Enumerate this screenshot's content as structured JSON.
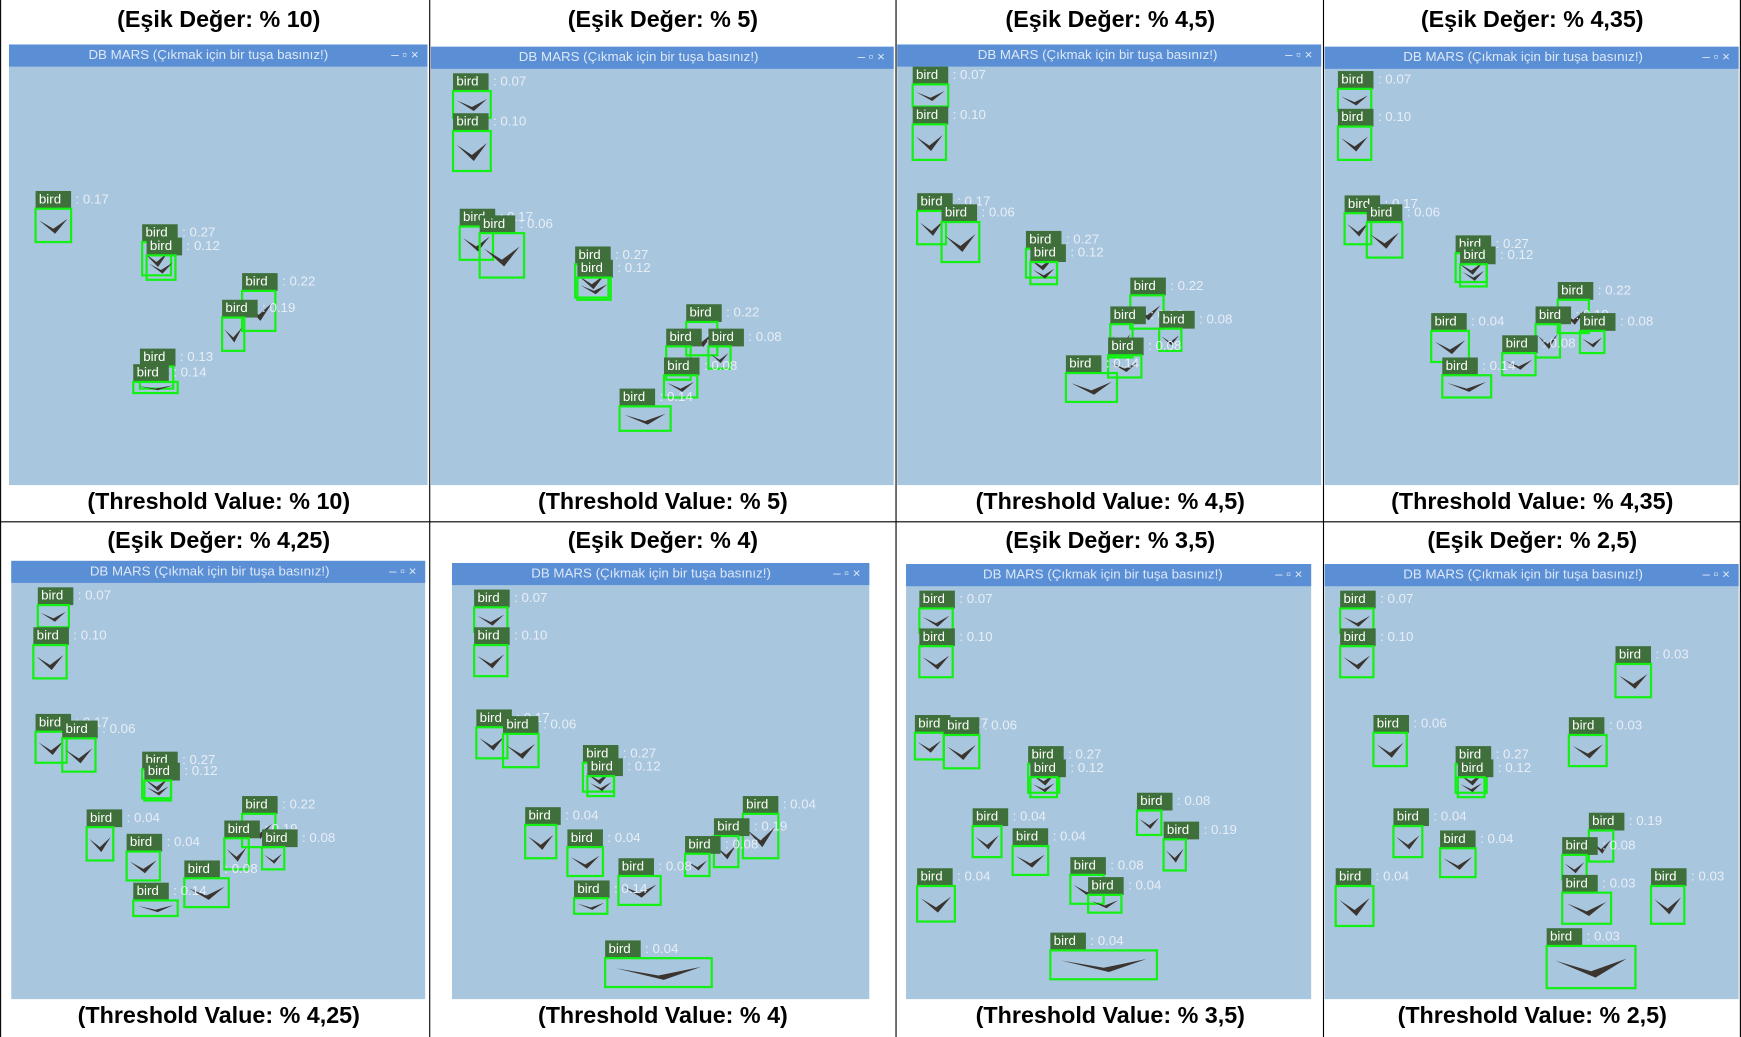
{
  "window_controls": "–  ▫  ×",
  "panels": [
    {
      "title": "(Eşik Değer: % 10)",
      "caption": "(Threshold Value: % 10)",
      "window_title": "DB MARS (Çıkmak için bir tuşa basınız!)",
      "detections": [
        {
          "label": "bird",
          "score": ": 0.17"
        },
        {
          "label": "bird",
          "score": ": 0.27"
        },
        {
          "label": "bird",
          "score": ": 0.12"
        },
        {
          "label": "bird",
          "score": ": 0.22"
        },
        {
          "label": "bird",
          "score": ": 0.19"
        },
        {
          "label": "bird",
          "score": ": 0.13"
        },
        {
          "label": "bird",
          "score": ": 0.14"
        }
      ]
    },
    {
      "title": "(Eşik Değer: % 5)",
      "caption": "(Threshold Value: % 5)",
      "window_title": "DB MARS (Çıkmak için bir tuşa basınız!)",
      "detections": [
        {
          "label": "bird",
          "score": ": 0.07"
        },
        {
          "label": "bird",
          "score": ": 0.10"
        },
        {
          "label": "bird",
          "score": ": 0.17"
        },
        {
          "label": "bird",
          "score": ": 0.06"
        },
        {
          "label": "bird",
          "score": ": 0.27"
        },
        {
          "label": "bird",
          "score": ": 0.12"
        },
        {
          "label": "bird",
          "score": ": 0.22"
        },
        {
          "label": "bird",
          "score": ": 0.19"
        },
        {
          "label": "bird",
          "score": ": 0.08"
        },
        {
          "label": "bird",
          "score": ": 0.08"
        },
        {
          "label": "bird",
          "score": ": 0.14"
        }
      ]
    },
    {
      "title": "(Eşik Değer: % 4,5)",
      "caption": "(Threshold Value: % 4,5)",
      "window_title": "DB MARS (Çıkmak için bir tuşa basınız!)",
      "detections": [
        {
          "label": "bird",
          "score": ": 0.07"
        },
        {
          "label": "bird",
          "score": ": 0.10"
        },
        {
          "label": "bird",
          "score": ": 0.17"
        },
        {
          "label": "bird",
          "score": ": 0.06"
        },
        {
          "label": "bird",
          "score": ": 0.27"
        },
        {
          "label": "bird",
          "score": ": 0.12"
        },
        {
          "label": "bird",
          "score": ": 0.22"
        },
        {
          "label": "bird",
          "score": ": 0.19"
        },
        {
          "label": "bird",
          "score": ": 0.08"
        },
        {
          "label": "bird",
          "score": ": 0.08"
        },
        {
          "label": "bird",
          "score": ": 0.14"
        }
      ]
    },
    {
      "title": "(Eşik Değer: % 4,35)",
      "caption": "(Threshold Value: % 4,35)",
      "window_title": "DB MARS (Çıkmak için bir tuşa basınız!)",
      "detections": [
        {
          "label": "bird",
          "score": ": 0.07"
        },
        {
          "label": "bird",
          "score": ": 0.10"
        },
        {
          "label": "bird",
          "score": ": 0.17"
        },
        {
          "label": "bird",
          "score": ": 0.06"
        },
        {
          "label": "bird",
          "score": ": 0.27"
        },
        {
          "label": "bird",
          "score": ": 0.12"
        },
        {
          "label": "bird",
          "score": ": 0.22"
        },
        {
          "label": "bird",
          "score": ": 0.19"
        },
        {
          "label": "bird",
          "score": ": 0.04"
        },
        {
          "label": "bird",
          "score": ": 0.08"
        },
        {
          "label": "bird",
          "score": ": 0.08"
        },
        {
          "label": "bird",
          "score": ": 0.14"
        }
      ]
    },
    {
      "title": "(Eşik Değer: % 4,25)",
      "caption": "(Threshold Value: % 4,25)",
      "window_title": "DB MARS (Çıkmak için bir tuşa basınız!)",
      "detections": [
        {
          "label": "bird",
          "score": ": 0.07"
        },
        {
          "label": "bird",
          "score": ": 0.10"
        },
        {
          "label": "bird",
          "score": ": 0.17"
        },
        {
          "label": "bird",
          "score": ": 0.06"
        },
        {
          "label": "bird",
          "score": ": 0.27"
        },
        {
          "label": "bird",
          "score": ": 0.12"
        },
        {
          "label": "bird",
          "score": ": 0.04"
        },
        {
          "label": "bird",
          "score": ": 0.04"
        },
        {
          "label": "bird",
          "score": ": 0.22"
        },
        {
          "label": "bird",
          "score": ": 0.19"
        },
        {
          "label": "bird",
          "score": ": 0.08"
        },
        {
          "label": "bird",
          "score": ": 0.08"
        },
        {
          "label": "bird",
          "score": ": 0.14"
        }
      ]
    },
    {
      "title": "(Eşik Değer: % 4)",
      "caption": "(Threshold Value: % 4)",
      "window_title": "DB MARS (Çıkmak için bir tuşa basınız!)",
      "detections": [
        {
          "label": "bird",
          "score": ": 0.07"
        },
        {
          "label": "bird",
          "score": ": 0.10"
        },
        {
          "label": "bird",
          "score": ": 0.17"
        },
        {
          "label": "bird",
          "score": ": 0.06"
        },
        {
          "label": "bird",
          "score": ": 0.27"
        },
        {
          "label": "bird",
          "score": ": 0.12"
        },
        {
          "label": "bird",
          "score": ": 0.04"
        },
        {
          "label": "bird",
          "score": ": 0.04"
        },
        {
          "label": "bird",
          "score": ": 0.04"
        },
        {
          "label": "bird",
          "score": ": 0.19"
        },
        {
          "label": "bird",
          "score": ": 0.08"
        },
        {
          "label": "bird",
          "score": ": 0.08"
        },
        {
          "label": "bird",
          "score": ": 0.14"
        },
        {
          "label": "bird",
          "score": ": 0.04"
        }
      ]
    },
    {
      "title": "(Eşik Değer: % 3,5)",
      "caption": "(Threshold Value: % 3,5)",
      "window_title": "DB MARS (Çıkmak için bir tuşa basınız!)",
      "detections": [
        {
          "label": "bird",
          "score": ": 0.07"
        },
        {
          "label": "bird",
          "score": ": 0.10"
        },
        {
          "label": "bird",
          "score": ": 0.17"
        },
        {
          "label": "bird",
          "score": ": 0.06"
        },
        {
          "label": "bird",
          "score": ": 0.27"
        },
        {
          "label": "bird",
          "score": ": 0.12"
        },
        {
          "label": "bird",
          "score": ": 0.04"
        },
        {
          "label": "bird",
          "score": ": 0.04"
        },
        {
          "label": "bird",
          "score": ": 0.04"
        },
        {
          "label": "bird",
          "score": ": 0.19"
        },
        {
          "label": "bird",
          "score": ": 0.08"
        },
        {
          "label": "bird",
          "score": ": 0.08"
        },
        {
          "label": "bird",
          "score": ": 0.04"
        },
        {
          "label": "bird",
          "score": ": 0.04"
        }
      ]
    },
    {
      "title": "(Eşik Değer: % 2,5)",
      "caption": "(Threshold Value: % 2,5)",
      "window_title": "DB MARS (Çıkmak için bir tuşa basınız!)",
      "detections": [
        {
          "label": "bird",
          "score": ": 0.07"
        },
        {
          "label": "bird",
          "score": ": 0.10"
        },
        {
          "label": "bird",
          "score": ": 0.03"
        },
        {
          "label": "bird",
          "score": ": 0.03"
        },
        {
          "label": "bird",
          "score": ": 0.06"
        },
        {
          "label": "bird",
          "score": ": 0.27"
        },
        {
          "label": "bird",
          "score": ": 0.12"
        },
        {
          "label": "bird",
          "score": ": 0.04"
        },
        {
          "label": "bird",
          "score": ": 0.04"
        },
        {
          "label": "bird",
          "score": ": 0.19"
        },
        {
          "label": "bird",
          "score": ": 0.08"
        },
        {
          "label": "bird",
          "score": ": 0.04"
        },
        {
          "label": "bird",
          "score": ": 0.03"
        },
        {
          "label": "bird",
          "score": ": 0.03"
        },
        {
          "label": "bird",
          "score": ": 0.03"
        }
      ]
    }
  ]
}
